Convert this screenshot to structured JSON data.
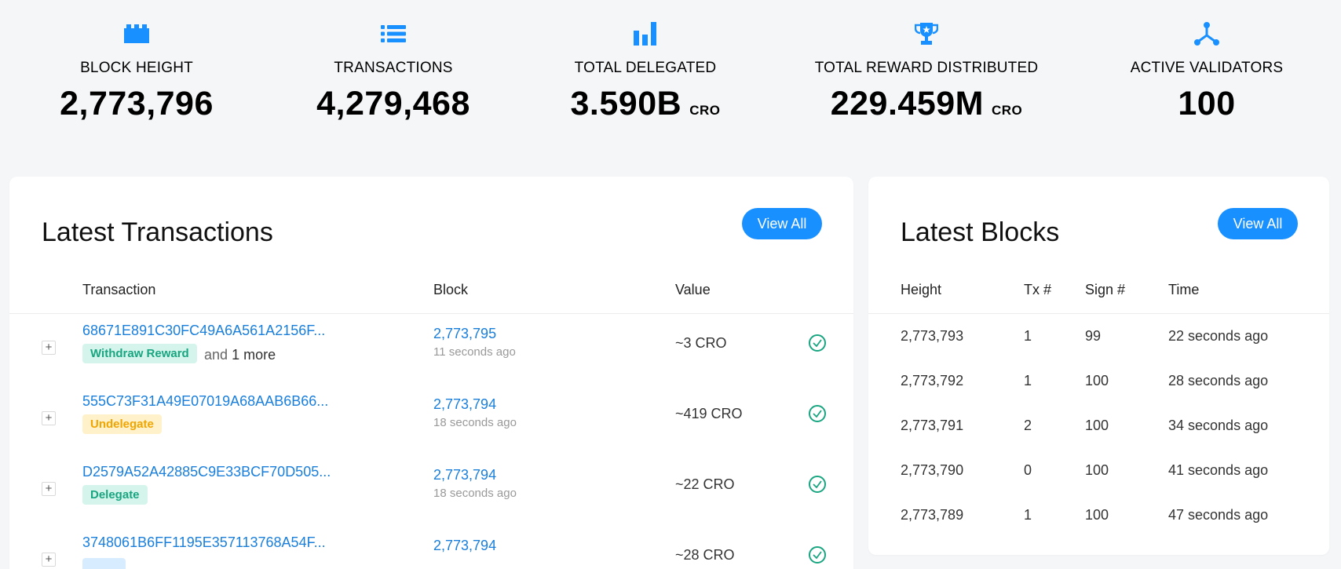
{
  "stats": [
    {
      "icon": "blocks-icon",
      "label": "BLOCK HEIGHT",
      "value": "2,773,796",
      "unit": ""
    },
    {
      "icon": "list-icon",
      "label": "TRANSACTIONS",
      "value": "4,279,468",
      "unit": ""
    },
    {
      "icon": "bar-chart-icon",
      "label": "TOTAL DELEGATED",
      "value": "3.590B",
      "unit": "CRO"
    },
    {
      "icon": "trophy-icon",
      "label": "TOTAL REWARD DISTRIBUTED",
      "value": "229.459M",
      "unit": "CRO"
    },
    {
      "icon": "nodes-icon",
      "label": "ACTIVE VALIDATORS",
      "value": "100",
      "unit": ""
    }
  ],
  "colors": {
    "accent": "#1890ff",
    "link": "#1a7fdb",
    "success": "#1aa581",
    "warning": "#f0a500"
  },
  "transactions": {
    "title": "Latest Transactions",
    "view_all": "View All",
    "columns": [
      "Transaction",
      "Block",
      "Value"
    ],
    "rows": [
      {
        "hash": "68671E891C30FC49A6A561A2156F...",
        "tag": "Withdraw Reward",
        "and": "and",
        "more": "1 more",
        "block": "2,773,795",
        "time": "11 seconds ago",
        "value": "~3 CRO"
      },
      {
        "hash": "555C73F31A49E07019A68AAB6B66...",
        "tag": "Undelegate",
        "block": "2,773,794",
        "time": "18 seconds ago",
        "value": "~419 CRO"
      },
      {
        "hash": "D2579A52A42885C9E33BCF70D505...",
        "tag": "Delegate",
        "block": "2,773,794",
        "time": "18 seconds ago",
        "value": "~22 CRO"
      },
      {
        "hash": "3748061B6FF1195E357113768A54F...",
        "tag": "",
        "block": "2,773,794",
        "time": "",
        "value": "~28 CRO"
      }
    ]
  },
  "blocks": {
    "title": "Latest Blocks",
    "view_all": "View All",
    "columns": [
      "Height",
      "Tx #",
      "Sign #",
      "Time"
    ],
    "rows": [
      {
        "height": "2,773,793",
        "tx": "1",
        "sign": "99",
        "time": "22 seconds ago"
      },
      {
        "height": "2,773,792",
        "tx": "1",
        "sign": "100",
        "time": "28 seconds ago"
      },
      {
        "height": "2,773,791",
        "tx": "2",
        "sign": "100",
        "time": "34 seconds ago"
      },
      {
        "height": "2,773,790",
        "tx": "0",
        "sign": "100",
        "time": "41 seconds ago"
      },
      {
        "height": "2,773,789",
        "tx": "1",
        "sign": "100",
        "time": "47 seconds ago"
      }
    ]
  }
}
